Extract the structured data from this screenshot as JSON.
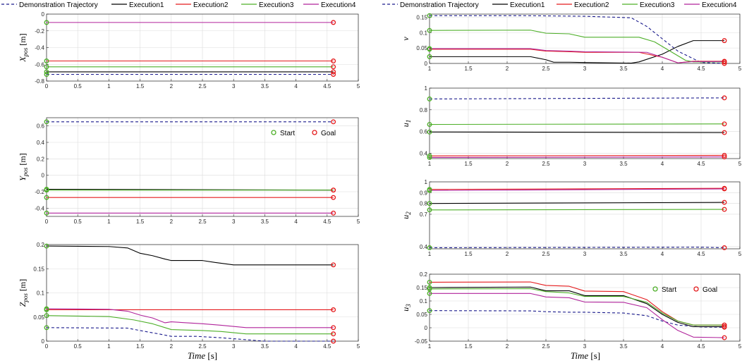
{
  "legend": {
    "entries": [
      {
        "label": "Demonstration Trajectory",
        "color": "#1a1a8c",
        "dash": true
      },
      {
        "label": "Execution1",
        "color": "#000000",
        "dash": false
      },
      {
        "label": "Execution2",
        "color": "#e41a1c",
        "dash": false
      },
      {
        "label": "Execution3",
        "color": "#4daf28",
        "dash": false
      },
      {
        "label": "Execution4",
        "color": "#b0239b",
        "dash": false
      }
    ],
    "markers": [
      {
        "label": "Start",
        "color": "#4daf28"
      },
      {
        "label": "Goal",
        "color": "#e41a1c"
      }
    ]
  },
  "x_axis_label": {
    "var": "Time",
    "unit": "[s]"
  },
  "chart_data": [
    {
      "type": "line",
      "ylabel": {
        "main": "X",
        "sub": "pos",
        "unit": "[m]"
      },
      "xlim": [
        0,
        5
      ],
      "ylim": [
        -0.8,
        0
      ],
      "xticks": [
        "0",
        "0.5",
        "1",
        "1.5",
        "2",
        "2.5",
        "3",
        "3.5",
        "4",
        "4.5",
        "5"
      ],
      "yticks": [
        {
          "v": 0,
          "t": "0"
        },
        {
          "v": -0.2,
          "t": "-0.2"
        },
        {
          "v": -0.4,
          "t": "-0.4"
        },
        {
          "v": -0.6,
          "t": "-0.6"
        },
        {
          "v": -0.8,
          "t": "-0.8"
        }
      ],
      "markers_start": true,
      "markers_goal": true,
      "show_marker_legend": false,
      "series": [
        {
          "x": [
            0,
            4.6
          ],
          "y": [
            -0.72,
            -0.72
          ]
        },
        {
          "x": [
            0,
            4.6
          ],
          "y": [
            -0.69,
            -0.69
          ]
        },
        {
          "x": [
            0,
            4.6
          ],
          "y": [
            -0.56,
            -0.56
          ]
        },
        {
          "x": [
            0,
            4.6
          ],
          "y": [
            -0.63,
            -0.63
          ]
        },
        {
          "x": [
            0,
            4.6
          ],
          "y": [
            -0.1,
            -0.1
          ]
        }
      ]
    },
    {
      "type": "line",
      "ylabel": {
        "main": "Y",
        "sub": "pos",
        "unit": "[m]"
      },
      "xlim": [
        0,
        5
      ],
      "ylim": [
        -0.5,
        0.7
      ],
      "xticks": [
        "0",
        "0.5",
        "1",
        "1.5",
        "2",
        "2.5",
        "3",
        "3.5",
        "4",
        "4.5",
        "5"
      ],
      "yticks": [
        {
          "v": 0.6,
          "t": "0.6"
        },
        {
          "v": 0.4,
          "t": "0.4"
        },
        {
          "v": 0.2,
          "t": "0.2"
        },
        {
          "v": 0,
          "t": "0"
        },
        {
          "v": -0.2,
          "t": "-0.2"
        },
        {
          "v": -0.4,
          "t": "-0.4"
        }
      ],
      "markers_start": true,
      "markers_goal": true,
      "show_marker_legend": true,
      "marker_legend_pos": "top-right",
      "series": [
        {
          "x": [
            0,
            4.6
          ],
          "y": [
            0.65,
            0.65
          ]
        },
        {
          "x": [
            0,
            4.6
          ],
          "y": [
            -0.17,
            -0.18
          ]
        },
        {
          "x": [
            0,
            4.6
          ],
          "y": [
            -0.27,
            -0.27
          ]
        },
        {
          "x": [
            0,
            4.6
          ],
          "y": [
            -0.18,
            -0.18
          ]
        },
        {
          "x": [
            0,
            4.6
          ],
          "y": [
            -0.46,
            -0.46
          ]
        }
      ]
    },
    {
      "type": "line",
      "ylabel": {
        "main": "Z",
        "sub": "pos",
        "unit": "[m]"
      },
      "xlim": [
        0,
        5
      ],
      "ylim": [
        0,
        0.2
      ],
      "xticks": [
        "0",
        "0.5",
        "1",
        "1.5",
        "2",
        "2.5",
        "3",
        "3.5",
        "4",
        "4.5",
        "5"
      ],
      "yticks": [
        {
          "v": 0.2,
          "t": "0.2"
        },
        {
          "v": 0.15,
          "t": "0.15"
        },
        {
          "v": 0.1,
          "t": "0.1"
        },
        {
          "v": 0.05,
          "t": "0.05"
        },
        {
          "v": 0,
          "t": "0"
        }
      ],
      "markers_start": true,
      "markers_goal": true,
      "show_marker_legend": false,
      "series": [
        {
          "x": [
            0,
            1.3,
            1.5,
            1.8,
            2.0,
            2.4,
            2.8,
            3.2,
            3.5,
            4.0,
            4.6
          ],
          "y": [
            0.028,
            0.027,
            0.022,
            0.015,
            0.01,
            0.01,
            0.007,
            0.003,
            0.0,
            0.0,
            0.0
          ]
        },
        {
          "x": [
            0,
            1.0,
            1.3,
            1.5,
            1.7,
            1.9,
            2.0,
            2.5,
            2.7,
            3.0,
            4.6
          ],
          "y": [
            0.197,
            0.196,
            0.193,
            0.182,
            0.177,
            0.17,
            0.167,
            0.167,
            0.163,
            0.158,
            0.158
          ]
        },
        {
          "x": [
            0,
            4.6
          ],
          "y": [
            0.065,
            0.065
          ]
        },
        {
          "x": [
            0,
            1.0,
            1.4,
            1.7,
            1.9,
            2.0,
            2.5,
            2.8,
            3.2,
            4.6
          ],
          "y": [
            0.053,
            0.051,
            0.044,
            0.036,
            0.028,
            0.024,
            0.022,
            0.02,
            0.015,
            0.015
          ]
        },
        {
          "x": [
            0,
            1.0,
            1.3,
            1.5,
            1.7,
            1.9,
            2.0,
            2.5,
            2.8,
            3.2,
            4.6
          ],
          "y": [
            0.067,
            0.066,
            0.062,
            0.054,
            0.048,
            0.038,
            0.04,
            0.036,
            0.033,
            0.028,
            0.028
          ]
        }
      ]
    },
    {
      "type": "line",
      "ylabel": {
        "main": "v",
        "sub": "",
        "unit": ""
      },
      "xlim": [
        1,
        5
      ],
      "ylim": [
        0,
        0.16
      ],
      "xticks": [
        "1",
        "1.5",
        "2",
        "2.5",
        "3",
        "3.5",
        "4",
        "4.5",
        "5"
      ],
      "yticks": [
        {
          "v": 0.15,
          "t": "0.15"
        },
        {
          "v": 0.1,
          "t": "0.1"
        },
        {
          "v": 0.05,
          "t": "0.05"
        },
        {
          "v": 0,
          "t": "0"
        }
      ],
      "markers_start": true,
      "markers_goal": true,
      "show_marker_legend": false,
      "series": [
        {
          "x": [
            1,
            2.2,
            3.0,
            3.6,
            3.8,
            4.0,
            4.2,
            4.5,
            4.8
          ],
          "y": [
            0.155,
            0.155,
            0.153,
            0.148,
            0.12,
            0.08,
            0.04,
            0.003,
            0.0
          ]
        },
        {
          "x": [
            1,
            2.3,
            2.5,
            2.6,
            2.8,
            3.0,
            3.6,
            3.7,
            4.0,
            4.2,
            4.4,
            4.8
          ],
          "y": [
            0.022,
            0.022,
            0.012,
            0.004,
            0.004,
            0.003,
            0.001,
            0.005,
            0.03,
            0.055,
            0.074,
            0.074
          ]
        },
        {
          "x": [
            1,
            2.3,
            2.5,
            2.8,
            3.0,
            3.7,
            4.0,
            4.2,
            4.4,
            4.8
          ],
          "y": [
            0.046,
            0.046,
            0.04,
            0.038,
            0.036,
            0.036,
            0.02,
            0.002,
            0.007,
            0.007
          ]
        },
        {
          "x": [
            1,
            2.3,
            2.5,
            2.8,
            3.0,
            3.7,
            3.9,
            4.1,
            4.3,
            4.4,
            4.8
          ],
          "y": [
            0.107,
            0.108,
            0.098,
            0.096,
            0.085,
            0.085,
            0.07,
            0.04,
            0.01,
            0.005,
            0.005
          ]
        },
        {
          "x": [
            1,
            2.3,
            2.5,
            2.8,
            3.0,
            3.8,
            4.0,
            4.2,
            4.4,
            4.8
          ],
          "y": [
            0.048,
            0.048,
            0.042,
            0.04,
            0.038,
            0.036,
            0.02,
            0.002,
            0.006,
            0.006
          ]
        }
      ]
    },
    {
      "type": "line",
      "ylabel": {
        "main": "u",
        "sub": "1",
        "unit": ""
      },
      "xlim": [
        1,
        5
      ],
      "ylim": [
        0.35,
        1.0
      ],
      "xticks": [
        "1",
        "1.5",
        "2",
        "2.5",
        "3",
        "3.5",
        "4",
        "4.5",
        "5"
      ],
      "yticks": [
        {
          "v": 1,
          "t": "1"
        },
        {
          "v": 0.8,
          "t": "0.8"
        },
        {
          "v": 0.6,
          "t": "0.6"
        },
        {
          "v": 0.4,
          "t": "0.4"
        }
      ],
      "markers_start": true,
      "markers_goal": true,
      "show_marker_legend": false,
      "series": [
        {
          "x": [
            1,
            4.8
          ],
          "y": [
            0.9,
            0.91
          ]
        },
        {
          "x": [
            1,
            4.8
          ],
          "y": [
            0.595,
            0.59
          ]
        },
        {
          "x": [
            1,
            4.8
          ],
          "y": [
            0.375,
            0.38
          ]
        },
        {
          "x": [
            1,
            4.8
          ],
          "y": [
            0.665,
            0.67
          ]
        },
        {
          "x": [
            1,
            4.8
          ],
          "y": [
            0.36,
            0.365
          ]
        }
      ]
    },
    {
      "type": "line",
      "ylabel": {
        "main": "u",
        "sub": "2",
        "unit": ""
      },
      "xlim": [
        1,
        5
      ],
      "ylim": [
        0.38,
        1.0
      ],
      "xticks": [
        "1",
        "1.5",
        "2",
        "2.5",
        "3",
        "3.5",
        "4",
        "4.5",
        "5"
      ],
      "yticks": [
        {
          "v": 1,
          "t": "1"
        },
        {
          "v": 0.9,
          "t": "0.9"
        },
        {
          "v": 0.8,
          "t": "0.8"
        },
        {
          "v": 0.7,
          "t": "0.7"
        },
        {
          "v": 0.4,
          "t": "0.4"
        }
      ],
      "markers_start": true,
      "markers_goal": true,
      "show_marker_legend": false,
      "series": [
        {
          "x": [
            1,
            4.5,
            4.8
          ],
          "y": [
            0.39,
            0.395,
            0.39
          ]
        },
        {
          "x": [
            1,
            4.8
          ],
          "y": [
            0.8,
            0.81
          ]
        },
        {
          "x": [
            1,
            4.8
          ],
          "y": [
            0.93,
            0.94
          ]
        },
        {
          "x": [
            1,
            4.8
          ],
          "y": [
            0.74,
            0.745
          ]
        },
        {
          "x": [
            1,
            4.8
          ],
          "y": [
            0.92,
            0.935
          ]
        }
      ]
    },
    {
      "type": "line",
      "ylabel": {
        "main": "u",
        "sub": "3",
        "unit": ""
      },
      "xlim": [
        1,
        5
      ],
      "ylim": [
        -0.05,
        0.2
      ],
      "xticks": [
        "1",
        "1.5",
        "2",
        "2.5",
        "3",
        "3.5",
        "4",
        "4.5",
        "5"
      ],
      "yticks": [
        {
          "v": 0.2,
          "t": "0.2"
        },
        {
          "v": 0.15,
          "t": "0.15"
        },
        {
          "v": 0.1,
          "t": "0.1"
        },
        {
          "v": 0.05,
          "t": "0.05"
        },
        {
          "v": 0,
          "t": "0"
        },
        {
          "v": -0.05,
          "t": "-0.05"
        }
      ],
      "markers_start": true,
      "markers_goal": true,
      "show_marker_legend": true,
      "marker_legend_pos": "top-right",
      "series": [
        {
          "x": [
            1,
            2.3,
            2.5,
            2.8,
            3.0,
            3.5,
            3.8,
            4.0,
            4.2,
            4.5,
            4.8
          ],
          "y": [
            0.064,
            0.063,
            0.06,
            0.058,
            0.058,
            0.055,
            0.045,
            0.025,
            0.01,
            0.003,
            0.002
          ]
        },
        {
          "x": [
            1,
            2.3,
            2.5,
            2.8,
            3.0,
            3.5,
            3.8,
            4.0,
            4.2,
            4.4,
            4.8
          ],
          "y": [
            0.15,
            0.152,
            0.138,
            0.138,
            0.12,
            0.12,
            0.09,
            0.05,
            0.02,
            0.004,
            0.004
          ]
        },
        {
          "x": [
            1,
            2.3,
            2.5,
            2.8,
            3.0,
            3.5,
            3.8,
            4.0,
            4.2,
            4.4,
            4.8
          ],
          "y": [
            0.17,
            0.171,
            0.158,
            0.155,
            0.137,
            0.135,
            0.105,
            0.06,
            0.025,
            0.01,
            0.01
          ]
        },
        {
          "x": [
            1,
            2.3,
            2.5,
            2.8,
            3.0,
            3.5,
            3.8,
            4.0,
            4.2,
            4.4,
            4.8
          ],
          "y": [
            0.145,
            0.146,
            0.135,
            0.13,
            0.117,
            0.117,
            0.095,
            0.055,
            0.025,
            0.01,
            0.01
          ]
        },
        {
          "x": [
            1,
            2.3,
            2.5,
            2.8,
            3.0,
            3.5,
            3.8,
            4.0,
            4.2,
            4.4,
            4.8
          ],
          "y": [
            0.128,
            0.128,
            0.115,
            0.112,
            0.096,
            0.095,
            0.075,
            0.03,
            -0.01,
            -0.035,
            -0.037
          ]
        }
      ]
    }
  ]
}
